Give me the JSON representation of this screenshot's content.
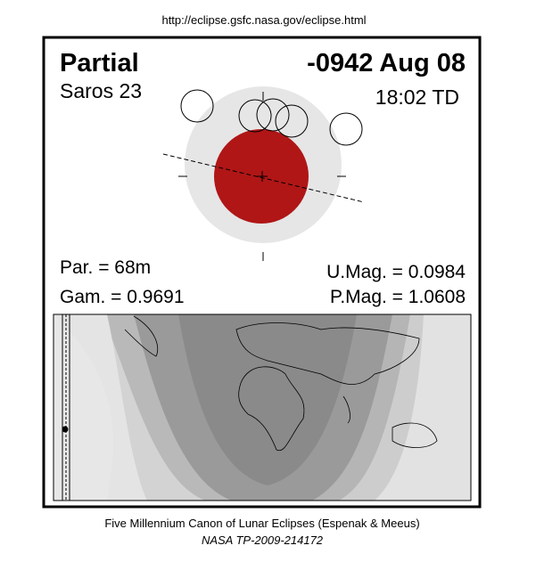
{
  "header": {
    "url": "http://eclipse.gsfc.nasa.gov/eclipse.html"
  },
  "panel": {
    "type": "Partial",
    "date": "-0942 Aug 08",
    "saros": "Saros  23",
    "time": "18:02 TD",
    "par": "Par. =  68m",
    "gam": "Gam. = 0.9691",
    "umag": "U.Mag. = 0.0984",
    "pmag": "P.Mag. = 1.0608"
  },
  "footer": {
    "line1": "Five Millennium Canon of Lunar Eclipses (Espenak & Meeus)",
    "line2": "NASA TP-2009-214172"
  }
}
